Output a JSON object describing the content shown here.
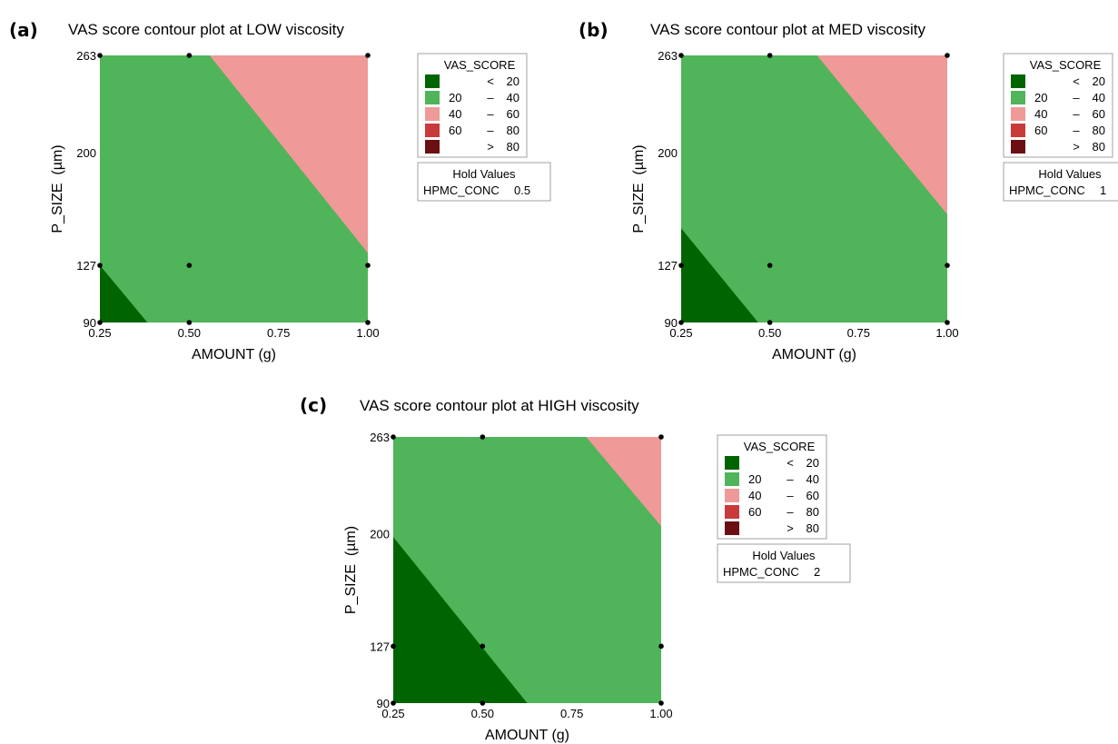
{
  "chart_data": [
    {
      "type": "heatmap",
      "panel_label": "(a)",
      "title": "VAS score contour plot at LOW viscosity",
      "xlabel": "AMOUNT (g)",
      "ylabel": "P_SIZE  (µm)",
      "xlim": [
        0.25,
        1.0
      ],
      "ylim": [
        90,
        263
      ],
      "xticks": [
        "0.25",
        "0.50",
        "0.75",
        "1.00"
      ],
      "yticks": [
        "90",
        "127",
        "200",
        "263"
      ],
      "design_points": [
        [
          0.25,
          263
        ],
        [
          0.5,
          263
        ],
        [
          1.0,
          263
        ],
        [
          0.25,
          127
        ],
        [
          0.5,
          127
        ],
        [
          1.0,
          127
        ],
        [
          0.25,
          90
        ],
        [
          0.5,
          90
        ],
        [
          1.0,
          90
        ]
      ],
      "regions": [
        {
          "range": "< 20",
          "polygon": [
            [
              0.25,
              90
            ],
            [
              0.25,
              127
            ],
            [
              0.383,
              90
            ]
          ]
        },
        {
          "range": "40 - 60",
          "polygon": [
            [
              0.557,
              263
            ],
            [
              1.0,
              263
            ],
            [
              1.0,
              135
            ]
          ]
        }
      ],
      "legend": {
        "title": "VAS_SCORE",
        "entries": [
          {
            "low": "",
            "sep": "<",
            "high": "20",
            "color": "#006400"
          },
          {
            "low": "20",
            "sep": "–",
            "high": "40",
            "color": "#50b45a"
          },
          {
            "low": "40",
            "sep": "–",
            "high": "60",
            "color": "#ef9998"
          },
          {
            "low": "60",
            "sep": "–",
            "high": "80",
            "color": "#c93b3b"
          },
          {
            "low": "",
            "sep": ">",
            "high": "80",
            "color": "#6b0f12"
          }
        ]
      },
      "hold": {
        "title": "Hold Values",
        "variable": "HPMC_CONC",
        "value": "0.5"
      }
    },
    {
      "type": "heatmap",
      "panel_label": "(b)",
      "title": "VAS score contour plot at MED viscosity",
      "xlabel": "AMOUNT (g)",
      "ylabel": "P_SIZE  (µm)",
      "xlim": [
        0.25,
        1.0
      ],
      "ylim": [
        90,
        263
      ],
      "xticks": [
        "0.25",
        "0.50",
        "0.75",
        "1.00"
      ],
      "yticks": [
        "90",
        "127",
        "200",
        "263"
      ],
      "design_points": [
        [
          0.25,
          263
        ],
        [
          0.5,
          263
        ],
        [
          1.0,
          263
        ],
        [
          0.25,
          127
        ],
        [
          0.5,
          127
        ],
        [
          1.0,
          127
        ],
        [
          0.25,
          90
        ],
        [
          0.5,
          90
        ],
        [
          1.0,
          90
        ]
      ],
      "regions": [
        {
          "range": "< 20",
          "polygon": [
            [
              0.25,
              90
            ],
            [
              0.25,
              151
            ],
            [
              0.467,
              90
            ]
          ]
        },
        {
          "range": "40 - 60",
          "polygon": [
            [
              0.633,
              263
            ],
            [
              1.0,
              263
            ],
            [
              1.0,
              160
            ]
          ]
        }
      ],
      "legend": {
        "title": "VAS_SCORE",
        "entries": [
          {
            "low": "",
            "sep": "<",
            "high": "20",
            "color": "#006400"
          },
          {
            "low": "20",
            "sep": "–",
            "high": "40",
            "color": "#50b45a"
          },
          {
            "low": "40",
            "sep": "–",
            "high": "60",
            "color": "#ef9998"
          },
          {
            "low": "60",
            "sep": "–",
            "high": "80",
            "color": "#c93b3b"
          },
          {
            "low": "",
            "sep": ">",
            "high": "80",
            "color": "#6b0f12"
          }
        ]
      },
      "hold": {
        "title": "Hold Values",
        "variable": "HPMC_CONC",
        "value": "1"
      }
    },
    {
      "type": "heatmap",
      "panel_label": "(c)",
      "title": "VAS score contour plot at HIGH viscosity",
      "xlabel": "AMOUNT (g)",
      "ylabel": "P_SIZE  (µm)",
      "xlim": [
        0.25,
        1.0
      ],
      "ylim": [
        90,
        263
      ],
      "xticks": [
        "0.25",
        "0.50",
        "0.75",
        "1.00"
      ],
      "yticks": [
        "90",
        "127",
        "200",
        "263"
      ],
      "design_points": [
        [
          0.25,
          263
        ],
        [
          0.5,
          263
        ],
        [
          1.0,
          263
        ],
        [
          0.25,
          127
        ],
        [
          0.5,
          127
        ],
        [
          1.0,
          127
        ],
        [
          0.25,
          90
        ],
        [
          0.5,
          90
        ],
        [
          1.0,
          90
        ]
      ],
      "regions": [
        {
          "range": "< 20",
          "polygon": [
            [
              0.25,
              90
            ],
            [
              0.25,
              198
            ],
            [
              0.625,
              90
            ]
          ]
        },
        {
          "range": "40 - 60",
          "polygon": [
            [
              0.79,
              263
            ],
            [
              1.0,
              263
            ],
            [
              1.0,
              205
            ]
          ]
        }
      ],
      "legend": {
        "title": "VAS_SCORE",
        "entries": [
          {
            "low": "",
            "sep": "<",
            "high": "20",
            "color": "#006400"
          },
          {
            "low": "20",
            "sep": "–",
            "high": "40",
            "color": "#50b45a"
          },
          {
            "low": "40",
            "sep": "–",
            "high": "60",
            "color": "#ef9998"
          },
          {
            "low": "60",
            "sep": "–",
            "high": "80",
            "color": "#c93b3b"
          },
          {
            "low": "",
            "sep": ">",
            "high": "80",
            "color": "#6b0f12"
          }
        ]
      },
      "hold": {
        "title": "Hold Values",
        "variable": "HPMC_CONC",
        "value": "2"
      }
    }
  ],
  "colors": {
    "base_fill": "#50b45a",
    "low_fill": "#006400",
    "mid_fill": "#ef9998",
    "point": "#000000",
    "legend_border": "#a0a0a0"
  }
}
